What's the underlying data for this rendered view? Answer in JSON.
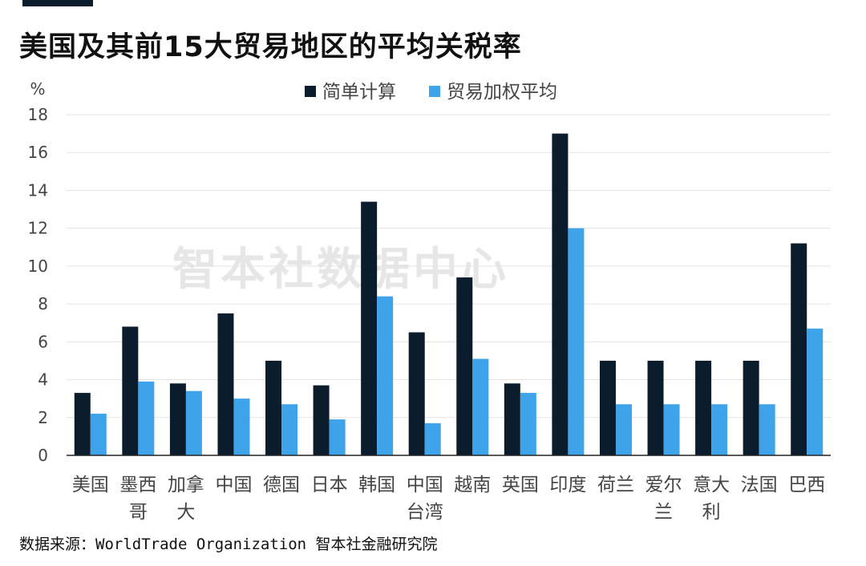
{
  "page": {
    "title": "美国及其前15大贸易地区的平均关税率",
    "source": "数据来源：WorldTrade Organization 智本社金融研究院",
    "watermark": "智本社数据中心"
  },
  "chart_data": {
    "type": "bar",
    "title": "美国及其前15大贸易地区的平均关税率",
    "ylabel": "%",
    "xlabel": "",
    "ylim": [
      0,
      18
    ],
    "yticks": [
      0,
      2,
      4,
      6,
      8,
      10,
      12,
      14,
      16,
      18
    ],
    "grid": true,
    "legend_position": "top-center",
    "categories": [
      "美国",
      "墨西哥",
      "加拿大",
      "中国",
      "德国",
      "日本",
      "韩国",
      "中国台湾",
      "越南",
      "英国",
      "印度",
      "荷兰",
      "爱尔兰",
      "意大利",
      "法国",
      "巴西"
    ],
    "category_lines": [
      [
        "美国"
      ],
      [
        "墨西",
        "哥"
      ],
      [
        "加拿",
        "大"
      ],
      [
        "中国"
      ],
      [
        "德国"
      ],
      [
        "日本"
      ],
      [
        "韩国"
      ],
      [
        "中国",
        "台湾"
      ],
      [
        "越南"
      ],
      [
        "英国"
      ],
      [
        "印度"
      ],
      [
        "荷兰"
      ],
      [
        "爱尔",
        "兰"
      ],
      [
        "意大",
        "利"
      ],
      [
        "法国"
      ],
      [
        "巴西"
      ]
    ],
    "series": [
      {
        "name": "简单计算",
        "color": "#0b1c2d",
        "values": [
          3.3,
          6.8,
          3.8,
          7.5,
          5.0,
          3.7,
          13.4,
          6.5,
          9.4,
          3.8,
          17.0,
          5.0,
          5.0,
          5.0,
          5.0,
          11.2
        ]
      },
      {
        "name": "贸易加权平均",
        "color": "#3fa3ea",
        "values": [
          2.2,
          3.9,
          3.4,
          3.0,
          2.7,
          1.9,
          8.4,
          1.7,
          5.1,
          3.3,
          12.0,
          2.7,
          2.7,
          2.7,
          2.7,
          6.7
        ]
      }
    ]
  }
}
